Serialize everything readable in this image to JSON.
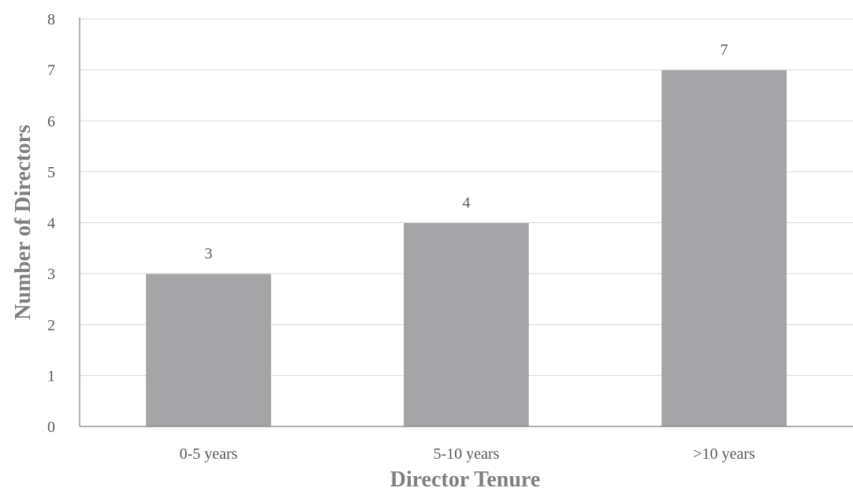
{
  "chart_data": {
    "type": "bar",
    "title": "",
    "xlabel": "Director Tenure",
    "ylabel": "Number of Directors",
    "categories": [
      "0-5 years",
      "5-10 years",
      ">10 years"
    ],
    "values": [
      3,
      4,
      7
    ],
    "data_labels": [
      "3",
      "4",
      "7"
    ],
    "ylim": [
      0,
      8
    ],
    "yticks": [
      "0",
      "1",
      "2",
      "3",
      "4",
      "5",
      "6",
      "7",
      "8"
    ],
    "grid": true,
    "legend": "none",
    "colors": {
      "bar": "#a5a5a8",
      "grid": "#d9d9d9",
      "axis": "#808080",
      "text": "#595959",
      "axis_title": "#7f7f7f"
    }
  }
}
